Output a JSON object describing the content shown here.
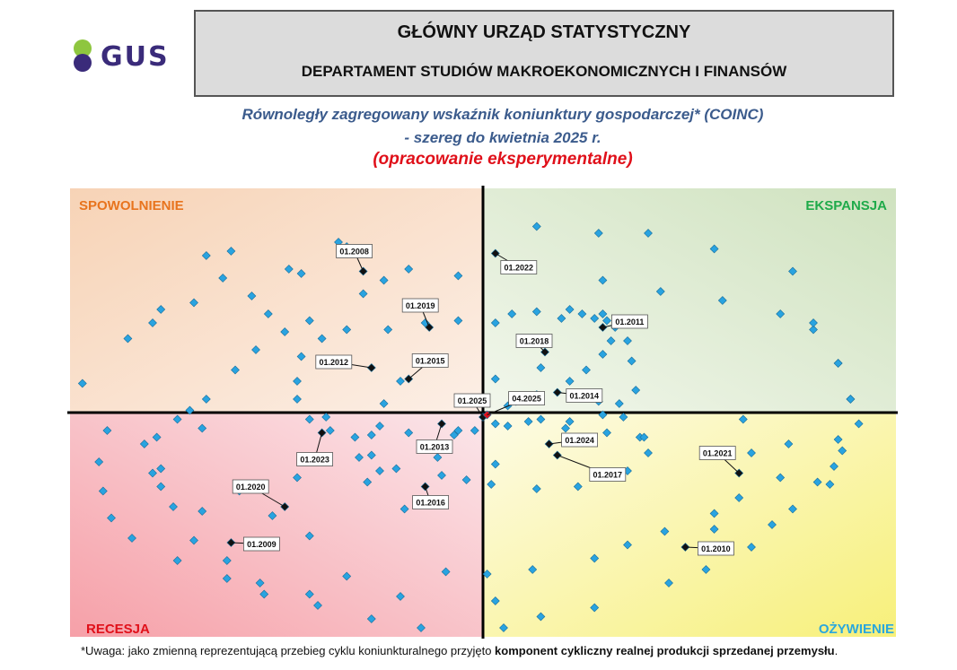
{
  "logo": {
    "text": "GUS"
  },
  "header": {
    "title": "GŁÓWNY URZĄD STATYSTYCZNY",
    "subtitle": "DEPARTAMENT STUDIÓW MAKROEKONOMICZNYCH I FINANSÓW"
  },
  "titles": {
    "line1": "Równoległy zagregowany wskaźnik koniunktury gospodarczej* (COINC)",
    "line2": "- szereg do kwietnia 2025 r.",
    "line3": "(opracowanie eksperymentalne)"
  },
  "quadrants": {
    "top_left": "SPOWOLNIENIE",
    "top_right": "EKSPANSJA",
    "bottom_left": "RECESJA",
    "bottom_right": "OŻYWIENIE"
  },
  "colors": {
    "marker": "#29a3e0",
    "marker_highlight": "#111111",
    "current_point": "#e0101a",
    "q_top_left_label": "#e8741e",
    "q_top_right_label": "#1faa4a",
    "q_bottom_left_label": "#e0101a",
    "q_bottom_right_label": "#2aa7dd"
  },
  "footnote": {
    "prefix": "*Uwaga: jako zmienną reprezentującą przebieg cyklu koniunkturalnego przyjęto ",
    "bold": "komponent cykliczny realnej produkcji sprzedanej przemysłu",
    "suffix": "."
  },
  "chart_data": {
    "type": "scatter",
    "title": "Równoległy zagregowany wskaźnik koniunktury gospodarczej* (COINC)",
    "xlim": [
      -10,
      10
    ],
    "ylim": [
      -10,
      10
    ],
    "grid": false,
    "quadrant_labels": [
      "SPOWOLNIENIE",
      "EKSPANSJA",
      "RECESJA",
      "OŻYWIENIE"
    ],
    "points": [
      [
        -1.8,
        6.4
      ],
      [
        -0.6,
        6.1
      ],
      [
        1.2,
        6.4
      ],
      [
        2.9,
        5.9
      ],
      [
        4.3,
        5.4
      ],
      [
        5.8,
        5.0
      ],
      [
        7.2,
        4.4
      ],
      [
        8.0,
        3.7
      ],
      [
        8.6,
        2.2
      ],
      [
        8.9,
        0.6
      ],
      [
        8.9,
        0.6
      ],
      [
        9.1,
        -0.5
      ],
      [
        8.6,
        -1.2
      ],
      [
        8.7,
        -1.7
      ],
      [
        8.5,
        -2.4
      ],
      [
        8.1,
        -3.1
      ],
      [
        6.2,
        -3.8
      ],
      [
        5.6,
        -4.5
      ],
      [
        4.4,
        -5.3
      ],
      [
        3.5,
        -5.9
      ],
      [
        2.7,
        -6.5
      ],
      [
        1.2,
        -7.0
      ],
      [
        0.3,
        -8.4
      ],
      [
        0.1,
        -7.2
      ],
      [
        -0.9,
        -7.1
      ],
      [
        -2.0,
        -8.2
      ],
      [
        -3.3,
        -7.3
      ],
      [
        -4.2,
        -8.1
      ],
      [
        -5.4,
        -7.6
      ],
      [
        -6.2,
        -6.6
      ],
      [
        -7.0,
        -5.7
      ],
      [
        -7.5,
        -4.2
      ],
      [
        -7.8,
        -3.3
      ],
      [
        -7.8,
        -2.5
      ],
      [
        -7.9,
        -1.1
      ],
      [
        -7.4,
        -0.3
      ],
      [
        -6.7,
        0.6
      ],
      [
        -6.0,
        1.9
      ],
      [
        -5.5,
        2.8
      ],
      [
        -4.8,
        3.6
      ],
      [
        -4.2,
        4.1
      ],
      [
        -2.9,
        5.3
      ],
      [
        -2.4,
        5.9
      ],
      [
        -3.8,
        -0.2
      ],
      [
        -3.1,
        -1.1
      ],
      [
        -2.7,
        -1.9
      ],
      [
        -2.1,
        -2.5
      ],
      [
        -1.0,
        -2.8
      ],
      [
        0.2,
        -3.2
      ],
      [
        1.3,
        -3.4
      ],
      [
        2.3,
        -3.3
      ],
      [
        3.5,
        -2.6
      ],
      [
        4.0,
        -1.8
      ],
      [
        3.8,
        -1.1
      ],
      [
        3.4,
        -0.2
      ],
      [
        2.8,
        0.5
      ],
      [
        2.1,
        1.4
      ],
      [
        1.4,
        2.0
      ],
      [
        0.3,
        1.5
      ],
      [
        -1.2,
        2.2
      ],
      [
        -2.0,
        1.4
      ],
      [
        -2.4,
        0.4
      ],
      [
        -2.5,
        -0.6
      ],
      [
        1.4,
        -0.3
      ],
      [
        2.1,
        -0.4
      ],
      [
        2.9,
        -0.1
      ],
      [
        3.3,
        0.4
      ],
      [
        3.7,
        1.0
      ],
      [
        3.6,
        2.3
      ],
      [
        3.5,
        3.2
      ],
      [
        3.2,
        3.8
      ],
      [
        2.9,
        4.4
      ],
      [
        2.1,
        4.6
      ],
      [
        1.3,
        4.5
      ],
      [
        0.7,
        4.4
      ],
      [
        0.3,
        4.0
      ],
      [
        -0.6,
        4.1
      ],
      [
        -1.4,
        4.0
      ],
      [
        -2.3,
        3.7
      ],
      [
        -3.3,
        3.7
      ],
      [
        -3.9,
        3.3
      ],
      [
        -4.4,
        2.5
      ],
      [
        -4.5,
        1.4
      ],
      [
        -4.5,
        0.6
      ],
      [
        -4.2,
        -0.3
      ],
      [
        -3.7,
        -0.8
      ],
      [
        -2.7,
        -1.0
      ],
      [
        -1.8,
        -0.9
      ],
      [
        -0.6,
        -0.8
      ],
      [
        0.6,
        -0.6
      ],
      [
        1.1,
        -0.4
      ],
      [
        2.0,
        -0.7
      ],
      [
        3.0,
        -0.9
      ],
      [
        3.9,
        -1.1
      ],
      [
        2.5,
        1.9
      ],
      [
        2.9,
        2.6
      ],
      [
        3.1,
        3.2
      ],
      [
        3.2,
        3.9
      ],
      [
        3.0,
        4.1
      ],
      [
        2.7,
        4.2
      ],
      [
        2.4,
        4.4
      ],
      [
        1.9,
        4.2
      ],
      [
        -4.5,
        -2.9
      ],
      [
        -2.5,
        -2.6
      ],
      [
        -0.4,
        -3.0
      ],
      [
        0.3,
        -2.3
      ],
      [
        6.3,
        -0.3
      ],
      [
        7.4,
        -1.4
      ],
      [
        7.2,
        -2.9
      ],
      [
        6.5,
        -1.8
      ],
      [
        5.6,
        -5.2
      ],
      [
        -6.8,
        -0.7
      ],
      [
        -7.1,
        0.1
      ],
      [
        -5.9,
        -3.5
      ],
      [
        -5.1,
        -4.6
      ],
      [
        -4.2,
        -5.5
      ],
      [
        -1.9,
        -4.3
      ],
      [
        -1.1,
        -2.0
      ],
      [
        -0.7,
        -1.0
      ],
      [
        -0.2,
        -0.8
      ],
      [
        0.3,
        -0.5
      ],
      [
        0.6,
        0.3
      ],
      [
        0.8,
        0.5
      ],
      [
        1.0,
        0.6
      ],
      [
        1.3,
        0.8
      ],
      [
        -8.0,
        4.0
      ],
      [
        -7.0,
        4.9
      ],
      [
        -6.3,
        6.0
      ],
      [
        -5.6,
        5.2
      ],
      [
        -5.2,
        4.4
      ],
      [
        -4.7,
        6.4
      ],
      [
        -4.4,
        6.2
      ],
      [
        -3.0,
        -2.0
      ],
      [
        -2.8,
        -3.1
      ],
      [
        -9.7,
        1.3
      ],
      [
        -8.6,
        3.3
      ],
      [
        -7.8,
        4.6
      ],
      [
        -6.7,
        7.0
      ],
      [
        -6.1,
        7.2
      ],
      [
        -3.5,
        7.6
      ],
      [
        -3.3,
        7.4
      ],
      [
        1.3,
        8.3
      ],
      [
        2.8,
        8.0
      ],
      [
        4.0,
        8.0
      ],
      [
        5.6,
        7.3
      ],
      [
        7.5,
        6.3
      ],
      [
        8.0,
        4.0
      ],
      [
        8.6,
        2.2
      ],
      [
        -9.1,
        -0.8
      ],
      [
        -9.3,
        -2.2
      ],
      [
        -9.2,
        -3.5
      ],
      [
        -9.0,
        -4.7
      ],
      [
        -8.5,
        -5.6
      ],
      [
        -7.4,
        -6.6
      ],
      [
        -6.2,
        -7.4
      ],
      [
        -5.3,
        -8.1
      ],
      [
        -4.0,
        -8.6
      ],
      [
        -2.7,
        -9.2
      ],
      [
        -1.5,
        -9.6
      ],
      [
        0.5,
        -9.6
      ],
      [
        1.4,
        -9.1
      ],
      [
        2.7,
        -8.7
      ],
      [
        4.5,
        -7.6
      ],
      [
        5.4,
        -7.0
      ],
      [
        6.5,
        -6.0
      ],
      [
        7.0,
        -5.0
      ],
      [
        7.5,
        -4.3
      ],
      [
        8.4,
        -3.2
      ],
      [
        -8.2,
        -1.4
      ],
      [
        -8.0,
        -2.7
      ],
      [
        -6.8,
        -4.4
      ]
    ],
    "highlighted_points": [
      {
        "label": "01.2008",
        "x": -2.9,
        "y": 6.3
      },
      {
        "label": "01.2019",
        "x": -1.3,
        "y": 3.8
      },
      {
        "label": "01.2015",
        "x": -1.8,
        "y": 1.5
      },
      {
        "label": "01.2012",
        "x": -2.7,
        "y": 2.0
      },
      {
        "label": "01.2022",
        "x": 0.3,
        "y": 7.1
      },
      {
        "label": "01.2011",
        "x": 2.9,
        "y": 3.8
      },
      {
        "label": "01.2018",
        "x": 1.5,
        "y": 2.7
      },
      {
        "label": "01.2014",
        "x": 1.8,
        "y": 0.9
      },
      {
        "label": "01.2025",
        "x": 0.0,
        "y": -0.2
      },
      {
        "label": "04.2025",
        "x": 0.1,
        "y": -0.1
      },
      {
        "label": "01.2013",
        "x": -1.0,
        "y": -0.5
      },
      {
        "label": "01.2023",
        "x": -3.9,
        "y": -0.9
      },
      {
        "label": "01.2024",
        "x": 1.6,
        "y": -1.4
      },
      {
        "label": "01.2017",
        "x": 1.8,
        "y": -1.9
      },
      {
        "label": "01.2021",
        "x": 6.2,
        "y": -2.7
      },
      {
        "label": "01.2016",
        "x": -1.4,
        "y": -3.3
      },
      {
        "label": "01.2020",
        "x": -4.8,
        "y": -4.2
      },
      {
        "label": "01.2009",
        "x": -6.1,
        "y": -5.8
      },
      {
        "label": "01.2010",
        "x": 4.9,
        "y": -6.0
      }
    ],
    "current_point": {
      "label": "04.2025",
      "x": 0.1,
      "y": -0.1
    }
  }
}
